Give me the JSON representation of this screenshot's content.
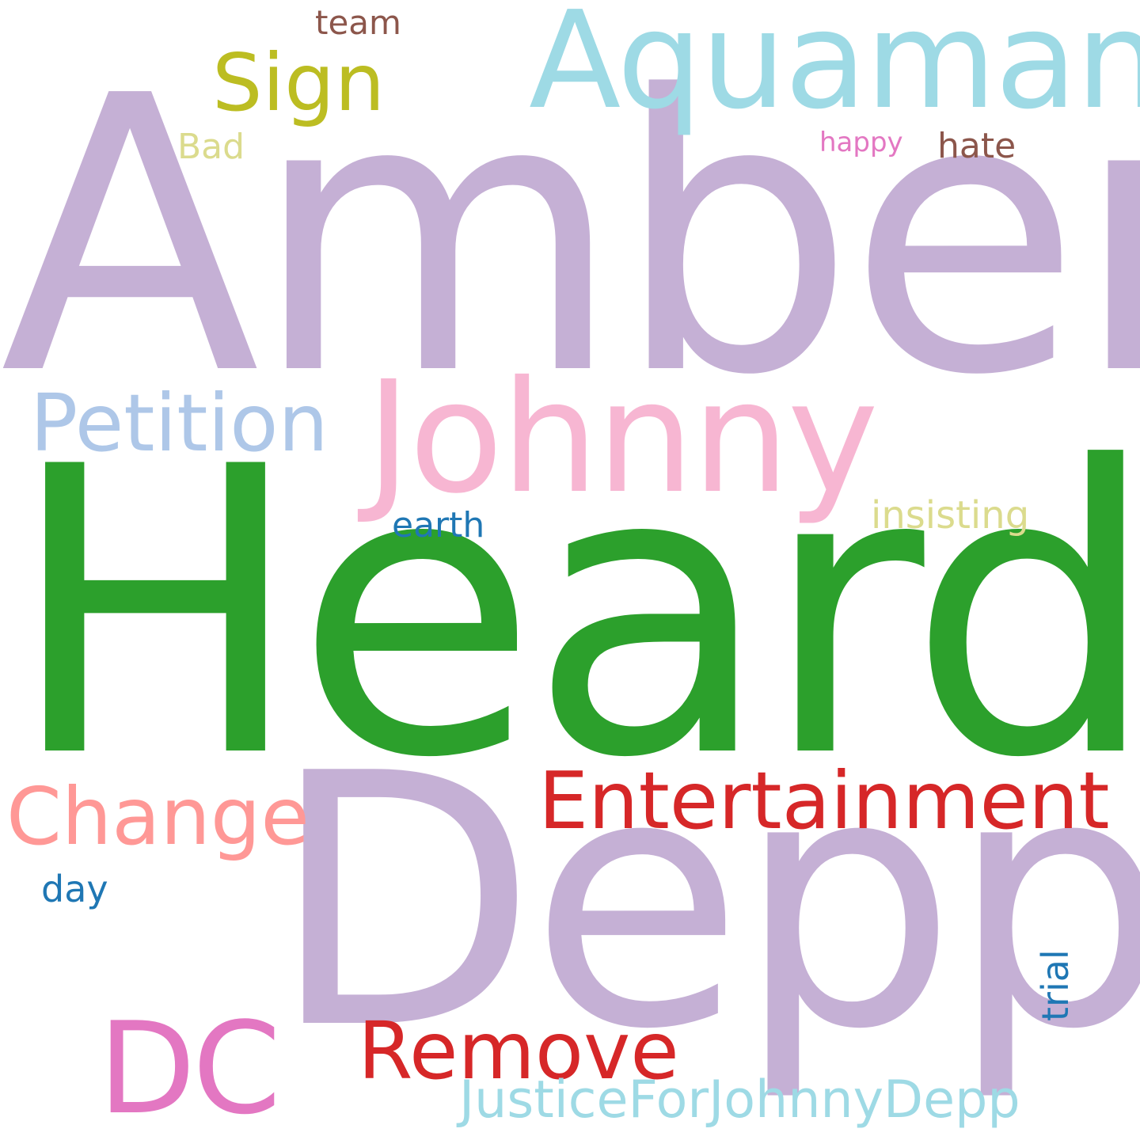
{
  "words": {
    "amber": {
      "text": "Amber",
      "color": "#c5b0d5"
    },
    "heard": {
      "text": "Heard",
      "color": "#2ca02c"
    },
    "depp": {
      "text": "Depp",
      "color": "#c5b0d5"
    },
    "johnny": {
      "text": "Johnny",
      "color": "#f7b6d2"
    },
    "aquaman": {
      "text": "Aquaman",
      "color": "#9edae5"
    },
    "entertainment": {
      "text": "Entertainment",
      "color": "#d62728"
    },
    "petition": {
      "text": "Petition",
      "color": "#aec7e8"
    },
    "change": {
      "text": "Change",
      "color": "#ff9896"
    },
    "dc": {
      "text": "DC",
      "color": "#e377c2"
    },
    "remove": {
      "text": "Remove",
      "color": "#d62728"
    },
    "sign": {
      "text": "Sign",
      "color": "#bcbd22"
    },
    "justice": {
      "text": "JusticeForJohnnyDepp",
      "color": "#9edae5"
    },
    "insisting": {
      "text": "insisting",
      "color": "#dbdb8d"
    },
    "earth": {
      "text": "earth",
      "color": "#1f77b4"
    },
    "trial": {
      "text": "trial",
      "color": "#1f77b4"
    },
    "day": {
      "text": "day",
      "color": "#1f77b4"
    },
    "hate": {
      "text": "hate",
      "color": "#8c564b"
    },
    "team": {
      "text": "team",
      "color": "#8c564b"
    },
    "bad": {
      "text": "Bad",
      "color": "#dbdb8d"
    },
    "happy": {
      "text": "happy",
      "color": "#e377c2"
    }
  }
}
